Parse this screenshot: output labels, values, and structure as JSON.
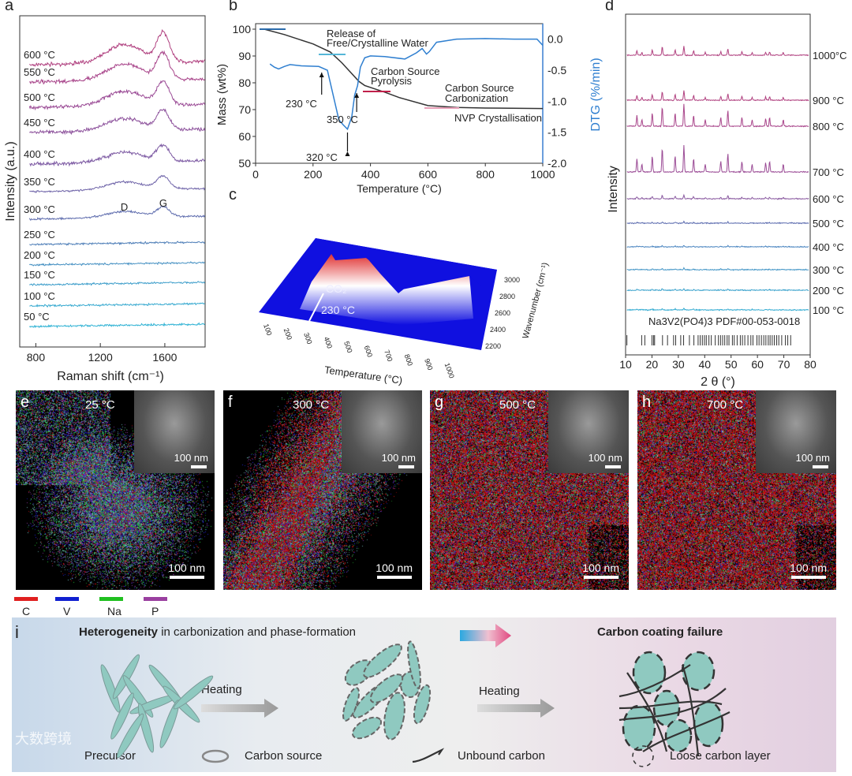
{
  "panel_labels": {
    "a": "a",
    "b": "b",
    "c": "c",
    "d": "d",
    "e": "e",
    "f": "f",
    "g": "g",
    "h": "h",
    "i": "i"
  },
  "chart_data": [
    {
      "panel": "a",
      "type": "line",
      "xlabel": "Raman shift (cm⁻¹)",
      "ylabel": "Intensity (a.u.)",
      "xlim": [
        700,
        1850
      ],
      "xticks": [
        800,
        1200,
        1600
      ],
      "series": [
        {
          "name": "600 °C"
        },
        {
          "name": "550 °C"
        },
        {
          "name": "500 °C"
        },
        {
          "name": "450 °C"
        },
        {
          "name": "400 °C"
        },
        {
          "name": "350 °C"
        },
        {
          "name": "300 °C"
        },
        {
          "name": "250 °C"
        },
        {
          "name": "200 °C"
        },
        {
          "name": "150 °C"
        },
        {
          "name": "100 °C"
        },
        {
          "name": "50 °C"
        }
      ],
      "annotations": [
        {
          "text": "D",
          "x": 1350
        },
        {
          "text": "G",
          "x": 1590
        }
      ],
      "colors": [
        "#b0407f",
        "#a8448a",
        "#9a4a95",
        "#8d529c",
        "#7d5aa3",
        "#6e63a8",
        "#5f6dae",
        "#4f7fb8",
        "#4590c2",
        "#3c9dca",
        "#34a8cf",
        "#2fb2d4"
      ]
    },
    {
      "panel": "b",
      "type": "line",
      "xlabel": "Temperature (°C)",
      "ylabel": "Mass (wt%)",
      "y2label": "DTG (%/min)",
      "xlim": [
        0,
        1000
      ],
      "xticks": [
        0,
        200,
        400,
        600,
        800,
        1000
      ],
      "ylim": [
        50,
        100
      ],
      "yticks": [
        50,
        60,
        70,
        80,
        90,
        100
      ],
      "y2lim": [
        -2.0,
        0.25
      ],
      "y2ticks": [
        "0.0",
        "-0.5",
        "-1.0",
        "-1.5",
        "-2.0"
      ],
      "series": [
        {
          "name": "Mass",
          "axis": "left",
          "color": "#333333",
          "x": [
            30,
            100,
            200,
            260,
            300,
            330,
            360,
            380,
            450,
            500,
            600,
            700,
            800,
            1000
          ],
          "y": [
            100,
            98,
            94.5,
            91.5,
            87.5,
            84,
            80.5,
            79,
            76.5,
            74.5,
            71.5,
            70.8,
            70.6,
            70.4
          ]
        },
        {
          "name": "DTG",
          "axis": "right",
          "color": "#2f7fd0",
          "x": [
            50,
            65,
            80,
            100,
            120,
            160,
            220,
            250,
            270,
            290,
            305,
            320,
            335,
            345,
            355,
            365,
            380,
            400,
            450,
            520,
            560,
            580,
            595,
            605,
            630,
            700,
            800,
            900,
            980,
            1000
          ],
          "y": [
            -0.4,
            -0.45,
            -0.48,
            -0.44,
            -0.41,
            -0.43,
            -0.44,
            -0.5,
            -0.9,
            -1.3,
            -1.38,
            -1.45,
            -1.25,
            -0.9,
            -0.75,
            -0.45,
            -0.3,
            -0.27,
            -0.28,
            -0.32,
            -0.22,
            -0.15,
            -0.24,
            -0.2,
            -0.05,
            0.0,
            0.01,
            0.0,
            0.0,
            -0.1
          ]
        }
      ],
      "annotations": [
        {
          "text": "Release of",
          "text2": "Free/Crystalline Water",
          "color": "#55b7d8"
        },
        {
          "text": "Carbon Source",
          "text2": "Pyrolysis",
          "color": "#c0204a"
        },
        {
          "text": "Carbon Source",
          "text2": "Carbonization",
          "color": "#e07090"
        },
        {
          "text": "NVP Crystallisation"
        },
        {
          "text": "230 °C",
          "x": 230
        },
        {
          "text": "320 °C",
          "x": 320
        },
        {
          "text": "350 °C",
          "x": 350
        }
      ]
    },
    {
      "panel": "c",
      "type": "heatmap",
      "xlabel": "Temperature (°C)",
      "ylabel": "Wavenumber (cm⁻¹)",
      "xticks": [
        100,
        200,
        300,
        400,
        500,
        600,
        700,
        800,
        900,
        1000
      ],
      "yticks": [
        2200,
        2400,
        2600,
        2800,
        3000
      ],
      "annotations": [
        {
          "text": "CO₂"
        },
        {
          "text": "230 °C",
          "x": 230
        }
      ],
      "colors": [
        "#1010e0",
        "#ffffff",
        "#e03030"
      ]
    },
    {
      "panel": "d",
      "type": "line",
      "xlabel": "2 θ (°)",
      "ylabel": "Intensity",
      "xlim": [
        10,
        80
      ],
      "xticks": [
        10,
        20,
        30,
        40,
        50,
        60,
        70,
        80
      ],
      "series": [
        {
          "name": "1000°C",
          "color": "#b0407f"
        },
        {
          "name": "900 °C",
          "color": "#b0407f"
        },
        {
          "name": "800 °C",
          "color": "#a8448a"
        },
        {
          "name": "700 °C",
          "color": "#9a4a95"
        },
        {
          "name": "600 °C",
          "color": "#8a5aa0"
        },
        {
          "name": "500 °C",
          "color": "#5a6aae"
        },
        {
          "name": "400 °C",
          "color": "#4a85c0"
        },
        {
          "name": "300 °C",
          "color": "#4295c6"
        },
        {
          "name": "200 °C",
          "color": "#3aa2cc"
        },
        {
          "name": "100 °C",
          "color": "#35acd2"
        }
      ],
      "peaks_2theta": [
        14.3,
        16.2,
        20.1,
        23.9,
        28.8,
        32.1,
        35.8,
        40.2,
        46.1,
        48.8,
        54.1,
        58.0,
        63.1,
        64.6,
        69.8
      ],
      "reference": {
        "label_html": "Na<sub>3</sub>V<sub>2</sub>(PO<sub>4</sub>)<sub>3</sub> PDF#00-053-0018",
        "label": "Na3V2(PO4)3 PDF#00-053-0018",
        "positions": [
          10.5,
          16.1,
          17.3,
          20.0,
          20.6,
          21.0,
          24.0,
          25.9,
          28.2,
          29.0,
          30.9,
          32.0,
          34.2,
          35.9,
          37.5,
          38.3,
          39.1,
          39.9,
          40.6,
          41.6,
          42.5,
          44.0,
          45.2,
          46.0,
          46.8,
          47.6,
          48.5,
          49.2,
          50.5,
          51.2,
          52.3,
          53.5,
          54.3,
          55.2,
          56.4,
          57.5,
          58.3,
          59.8,
          60.6,
          61.5,
          62.4,
          63.2,
          64.1,
          64.8,
          65.6,
          66.4,
          67.3,
          68.1,
          69.2,
          70.6,
          71.5,
          72.6
        ]
      }
    }
  ],
  "micrographs": [
    {
      "label": "e",
      "temp": "25 °C",
      "inset_scale": "100 nm",
      "scale": "100 nm",
      "red": 0.12
    },
    {
      "label": "f",
      "temp": "300 °C",
      "inset_scale": "100 nm",
      "scale": "100 nm",
      "red": 0.3
    },
    {
      "label": "g",
      "temp": "500 °C",
      "inset_scale": "100 nm",
      "scale": "100 nm",
      "red": 0.6
    },
    {
      "label": "h",
      "temp": "700 °C",
      "inset_scale": "100 nm",
      "scale": "100 nm",
      "red": 0.65
    }
  ],
  "element_legend": [
    {
      "label": "C",
      "color": "#e02020"
    },
    {
      "label": "V",
      "color": "#1020d0"
    },
    {
      "label": "Na",
      "color": "#20c020"
    },
    {
      "label": "P",
      "color": "#9a40a0"
    }
  ],
  "schematic": {
    "title_bold": "Heterogeneity",
    "title_rest": " in carbonization and phase-formation",
    "right_title": "Carbon coating failure",
    "heating1": "Heating",
    "heating2": "Heating",
    "legend": [
      "Precursor",
      "Carbon source",
      "Unbound carbon",
      "Loose carbon layer"
    ],
    "particle_color": "#8fc9c0"
  },
  "watermark": "大数跨境"
}
